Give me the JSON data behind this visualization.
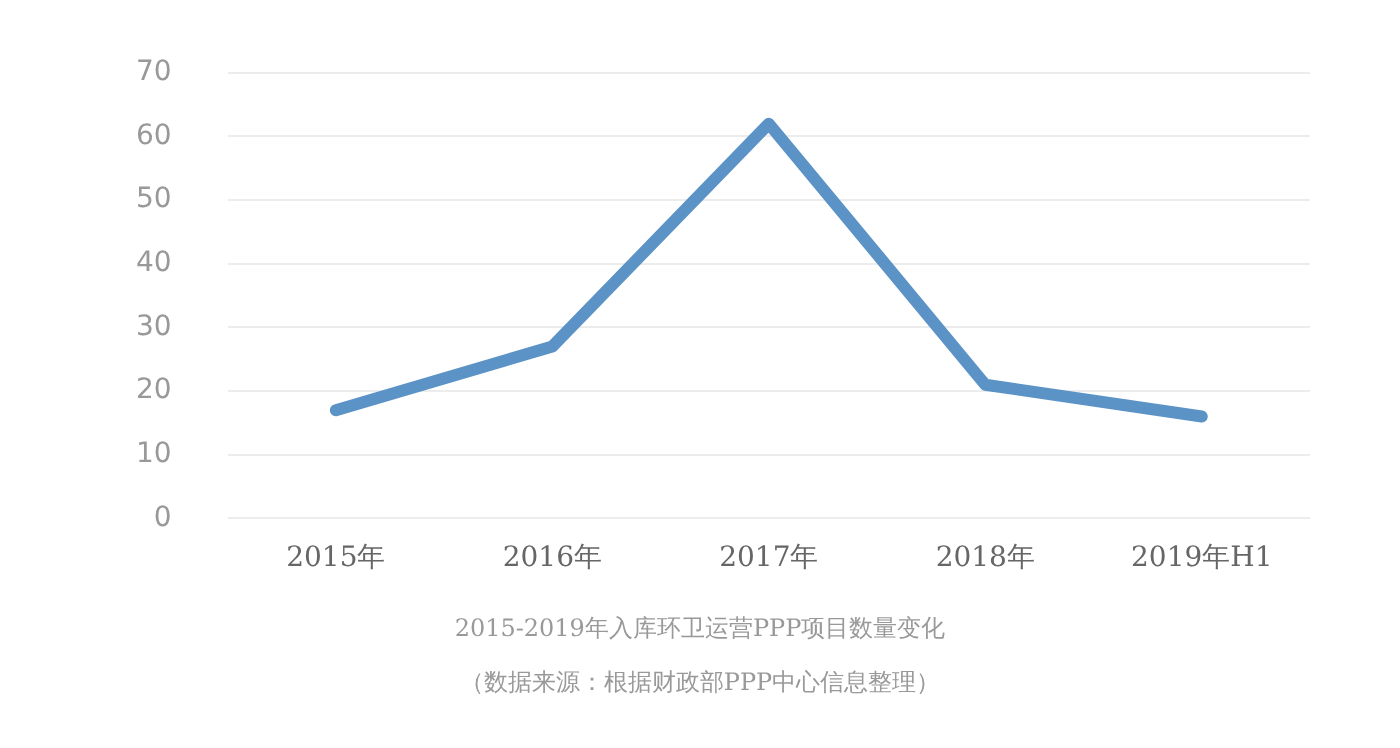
{
  "chart_data": {
    "type": "line",
    "title": "2015-2019年入库环卫运营PPP项目数量变化",
    "annotations": [
      "（数据来源：根据财政部PPP中心信息整理）"
    ],
    "categories": [
      "2015年",
      "2016年",
      "2017年",
      "2018年",
      "2019年H1"
    ],
    "series": [
      {
        "color": "#5b93c7",
        "values": [
          17,
          27,
          62,
          21,
          16
        ]
      }
    ],
    "ylim": [
      0,
      70
    ],
    "yticks": [
      0,
      10,
      20,
      30,
      40,
      50,
      60,
      70
    ],
    "grid": "y",
    "legend": false,
    "marker": "none",
    "line_style": "solid"
  }
}
